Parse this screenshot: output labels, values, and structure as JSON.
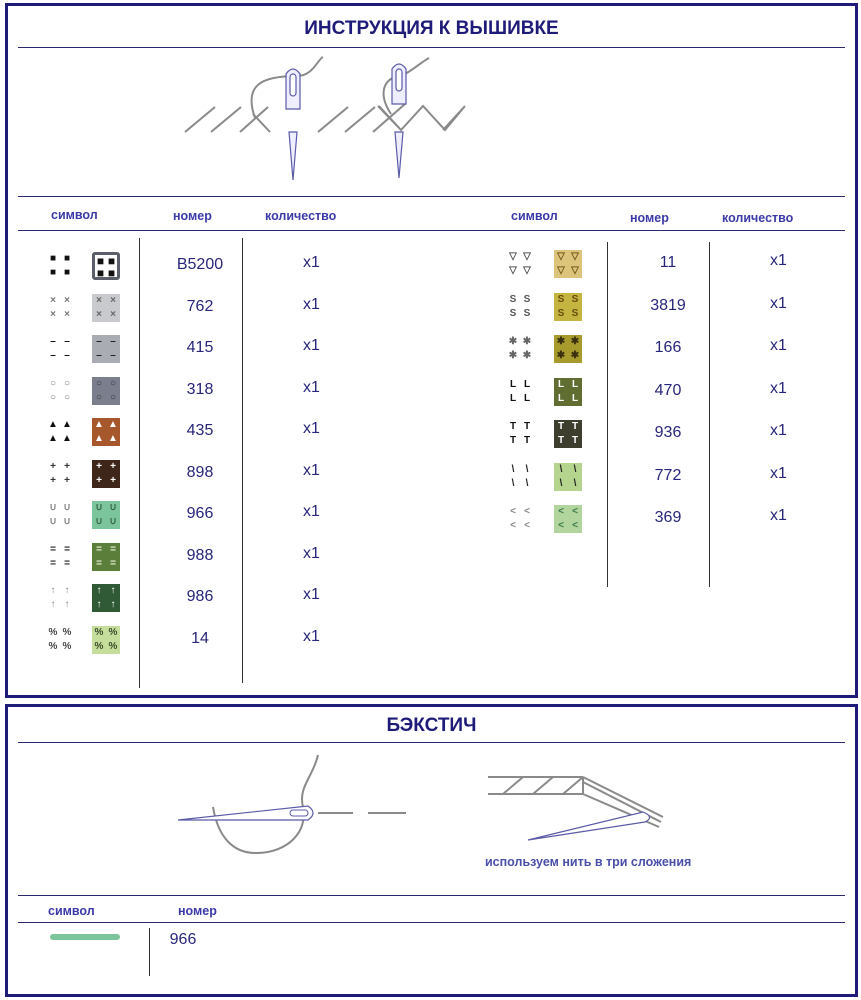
{
  "embroidery": {
    "title": "ИНСТРУКЦИЯ К ВЫШИВКЕ",
    "headers": {
      "symbol": "символ",
      "number": "номер",
      "quantity": "количество"
    },
    "left_rows": [
      {
        "glyph": "■",
        "number": "B5200",
        "qty": "x1",
        "color": "#ffffff",
        "border": "#5a5f6a",
        "glyph_color": "#111111",
        "plain_color": "#111111"
      },
      {
        "glyph": "×",
        "number": "762",
        "qty": "x1",
        "color": "#c9cacd",
        "glyph_color": "#666666",
        "plain_color": "#777777"
      },
      {
        "glyph": "–",
        "number": "415",
        "qty": "x1",
        "color": "#aaacb4",
        "glyph_color": "#222222",
        "plain_color": "#111111"
      },
      {
        "glyph": "○",
        "number": "318",
        "qty": "x1",
        "color": "#7b7f8d",
        "glyph_color": "#333333",
        "plain_color": "#777777"
      },
      {
        "glyph": "▲",
        "number": "435",
        "qty": "x1",
        "color": "#a6582c",
        "glyph_color": "#ffffff",
        "plain_color": "#111111"
      },
      {
        "glyph": "+",
        "number": "898",
        "qty": "x1",
        "color": "#3e261a",
        "glyph_color": "#ffffff",
        "plain_color": "#333333"
      },
      {
        "glyph": "∪",
        "number": "966",
        "qty": "x1",
        "color": "#7cc49b",
        "glyph_color": "#3a6a4a",
        "plain_color": "#888888"
      },
      {
        "glyph": "=",
        "number": "988",
        "qty": "x1",
        "color": "#5b7f3b",
        "glyph_color": "#e8f0d8",
        "plain_color": "#222222"
      },
      {
        "glyph": "↑",
        "number": "986",
        "qty": "x1",
        "color": "#2f5a35",
        "glyph_color": "#ffffff",
        "plain_color": "#888888"
      },
      {
        "glyph": "%",
        "number": "14",
        "qty": "x1",
        "color": "#c6de9b",
        "glyph_color": "#3a4a2a",
        "plain_color": "#444444"
      }
    ],
    "right_rows": [
      {
        "glyph": "▽",
        "number": "11",
        "qty": "x1",
        "color": "#dcc47b",
        "glyph_color": "#7a5a20",
        "plain_color": "#555555"
      },
      {
        "glyph": "S",
        "number": "3819",
        "qty": "x1",
        "color": "#c3b540",
        "glyph_color": "#6a4a10",
        "plain_color": "#555555"
      },
      {
        "glyph": "✱",
        "number": "166",
        "qty": "x1",
        "color": "#a89b2d",
        "glyph_color": "#3a3010",
        "plain_color": "#666666"
      },
      {
        "glyph": "L",
        "number": "470",
        "qty": "x1",
        "color": "#606e31",
        "glyph_color": "#ffffff",
        "plain_color": "#111111"
      },
      {
        "glyph": "T",
        "number": "936",
        "qty": "x1",
        "color": "#3d3e2d",
        "glyph_color": "#ffffff",
        "plain_color": "#111111"
      },
      {
        "glyph": "\\",
        "number": "772",
        "qty": "x1",
        "color": "#b5d58f",
        "glyph_color": "#222222",
        "plain_color": "#222222"
      },
      {
        "glyph": "<",
        "number": "369",
        "qty": "x1",
        "color": "#b2d49d",
        "glyph_color": "#3a7a4a",
        "plain_color": "#888888"
      }
    ]
  },
  "backstitch": {
    "title": "БЭКСТИЧ",
    "note": "используем нить в три сложения",
    "headers": {
      "symbol": "символ",
      "number": "номер"
    },
    "rows": [
      {
        "number": "966",
        "color": "#7cc49b"
      }
    ]
  }
}
